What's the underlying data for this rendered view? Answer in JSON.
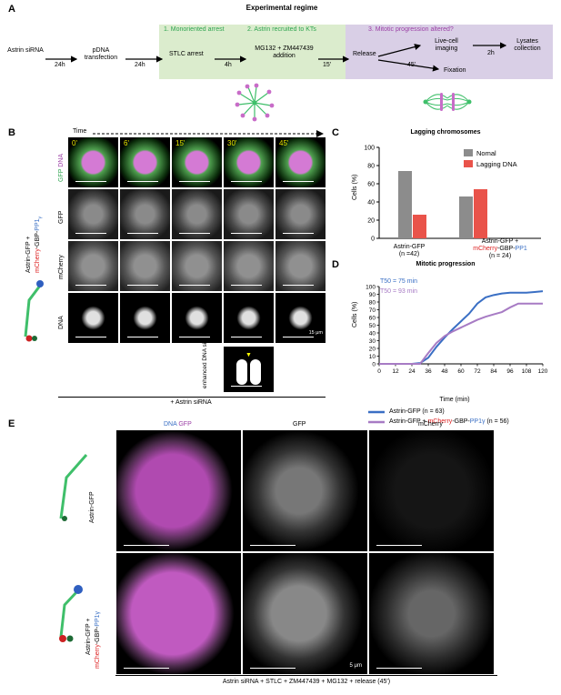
{
  "panel_labels": [
    "A",
    "B",
    "C",
    "D",
    "E"
  ],
  "a": {
    "title": "Experimental regime",
    "start": "Astrin siRNA",
    "t1": "24h",
    "step2": "pDNA transfection",
    "t2": "24h",
    "box1_title": "1. Monoriented arrest",
    "box2_title": "2. Astrin recruited to KTs",
    "box3_title": "3. Mitotic progression altered?",
    "stlc": "STLC arrest",
    "t3": "4h",
    "mg": "MG132 + ZM447439 addition",
    "t4": "15'",
    "release": "Release",
    "live": "Live-cell imaging",
    "t5": "2h",
    "lysates": "Lysates collection",
    "t6": "45'",
    "fixation": "Fixation"
  },
  "b": {
    "time_label": "Time",
    "timepoints": [
      "0'",
      "6'",
      "15'",
      "30'",
      "45'"
    ],
    "row_labels": {
      "merge_gfp": "GFP",
      "merge_dna": "DNA",
      "gfp": "GFP",
      "mcherry": "mCherry",
      "dna": "DNA"
    },
    "side_label_1": "Astrin-GFP +",
    "side_label_2a": "mCherry",
    "side_label_2b": "-GBP-",
    "side_label_2c": "PP1",
    "side_label_2d": "γ",
    "scale": "15 μm",
    "enhanced": "enhanced DNA signal",
    "footer": "+ Astrin siRNA"
  },
  "c": {
    "title": "Lagging chromosomes",
    "ylabel": "Cells (%)",
    "legend": [
      "Nomal",
      "Lagging DNA"
    ],
    "group1": "Astrin-GFP",
    "group1_n": "(n =42)",
    "group2a": "Astrin-GFP +",
    "group2b": "mCherry-GBP-PP1γ",
    "group2_n": "(n = 24)"
  },
  "d": {
    "title": "Mitotic progression",
    "ylabel": "Cells (%)",
    "xlabel": "Time (min)",
    "t50_a": "T50 = 75 min",
    "t50_b": "T50 = 93 min",
    "legend1": "Astrin-GFP (n = 63)",
    "legend2a": "Astrin-GFP + ",
    "legend2b": "mCherry",
    "legend2c": "-GBP-",
    "legend2d": "PP1γ",
    "legend2e": " (n = 56)"
  },
  "e": {
    "col_dna": "DNA",
    "col_gfp_merge": "GFP",
    "col_gfp": "GFP",
    "col_mcherry": "mCherry",
    "row1": "Astrin-GFP",
    "row2a": "Astrin-GFP +",
    "row2b": "mCherry",
    "row2c": "-GBP-",
    "row2d": "PP1γ",
    "scale": "5 μm",
    "footer": "Astrin siRNA + STLC + ZM447439 + MG132 + release (45')"
  },
  "colors": {
    "green_box": "#dbeccd",
    "purple_box": "#d9cfe6",
    "normal": "#8c8c8c",
    "lagging": "#e9534a",
    "line_gfp": "#3a6fc4",
    "line_pp1": "#a77bc4"
  },
  "chart_data": [
    {
      "type": "bar",
      "title": "Lagging chromosomes",
      "ylabel": "Cells (%)",
      "ylim": [
        0,
        100
      ],
      "categories": [
        "Astrin-GFP",
        "Astrin-GFP + mCherry-GBP-PP1γ"
      ],
      "series": [
        {
          "name": "Nomal",
          "values": [
            74,
            46
          ]
        },
        {
          "name": "Lagging DNA",
          "values": [
            26,
            54
          ]
        }
      ],
      "legend": "top-right"
    },
    {
      "type": "line",
      "title": "Mitotic progression",
      "xlabel": "Time (min)",
      "ylabel": "Cells (%)",
      "xlim": [
        0,
        120
      ],
      "ylim": [
        0,
        100
      ],
      "xticks": [
        0,
        12,
        24,
        36,
        48,
        60,
        72,
        84,
        96,
        108,
        120
      ],
      "yticks": [
        0,
        10,
        20,
        30,
        40,
        50,
        60,
        70,
        80,
        90,
        100
      ],
      "series": [
        {
          "name": "Astrin-GFP (n = 63)",
          "x": [
            0,
            24,
            30,
            36,
            42,
            48,
            54,
            60,
            66,
            72,
            78,
            84,
            90,
            96,
            102,
            108,
            114,
            120
          ],
          "y": [
            0,
            0,
            1,
            8,
            22,
            34,
            45,
            55,
            65,
            78,
            86,
            89,
            91,
            92,
            92,
            92,
            93,
            94
          ]
        },
        {
          "name": "Astrin-GFP + mCherry-GBP-PP1γ (n = 56)",
          "x": [
            0,
            30,
            36,
            42,
            48,
            54,
            60,
            66,
            72,
            78,
            84,
            90,
            96,
            102,
            108,
            114,
            120
          ],
          "y": [
            0,
            0,
            14,
            27,
            36,
            42,
            47,
            52,
            57,
            61,
            64,
            67,
            73,
            78,
            78,
            78,
            78
          ]
        }
      ]
    }
  ]
}
